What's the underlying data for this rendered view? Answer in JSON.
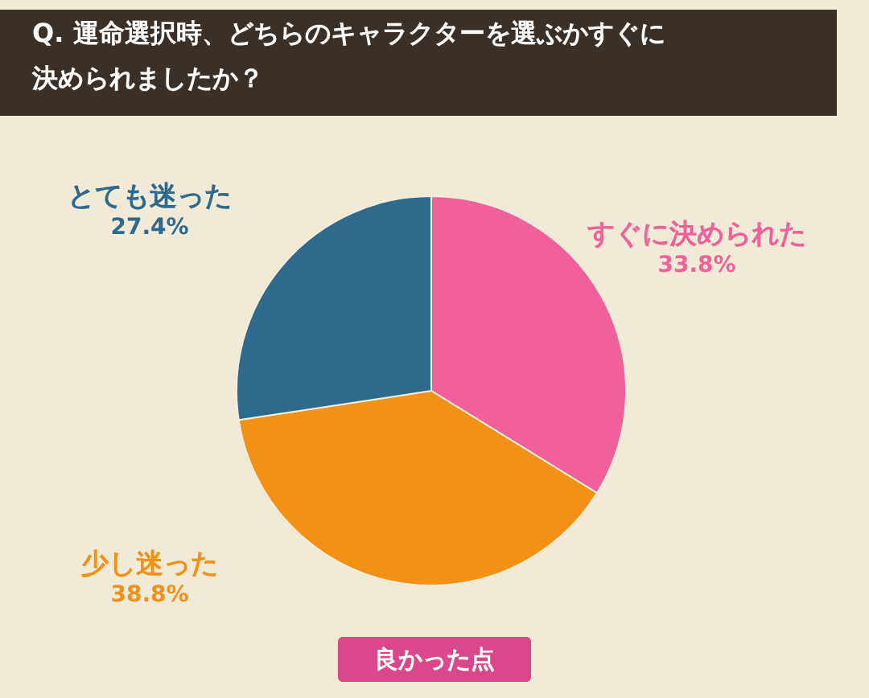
{
  "chart_data": {
    "type": "pie",
    "title": "Q. 運命選択時、どちらのキャラクターを選ぶかすぐに決められましたか？",
    "categories": [
      "すぐに決められた",
      "少し迷った",
      "とても迷った"
    ],
    "values": [
      33.8,
      38.8,
      27.4
    ],
    "value_labels": [
      "33.8%",
      "38.8%",
      "27.4%"
    ],
    "colors": [
      "#f0609a",
      "#f39016",
      "#2e6a8e"
    ],
    "annotations": [
      "良かった点"
    ]
  }
}
